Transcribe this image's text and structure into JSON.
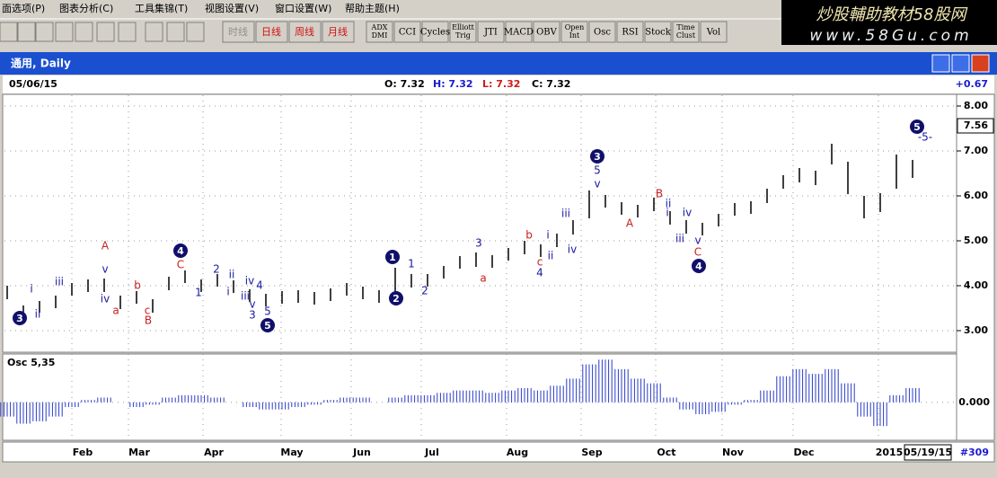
{
  "menu": [
    "面选项(P)",
    "图表分析(C)",
    "工具集锦(T)",
    "视图设置(V)",
    "窗口设置(W)",
    "帮助主题(H)"
  ],
  "banner": {
    "title": "炒股輔助教材58股网",
    "url": "www.58Gu.com"
  },
  "toolbar": {
    "period_buttons": [
      "时线",
      "日线",
      "周线",
      "月线"
    ],
    "indicator_buttons": [
      [
        "ADX",
        "DMI"
      ],
      [
        "CCI"
      ],
      [
        "Cycles"
      ],
      [
        "Elliott",
        "Trig"
      ],
      [
        "JTI"
      ],
      [
        "MACD"
      ],
      [
        "OBV"
      ],
      [
        "Open",
        "Int"
      ],
      [
        "Osc"
      ],
      [
        "RSI"
      ],
      [
        "Stock"
      ],
      [
        "Time",
        "Clust"
      ],
      [
        "Vol"
      ]
    ]
  },
  "window": {
    "title": "通用, Daily"
  },
  "info": {
    "date": "05/06/15",
    "open": "O: 7.32",
    "high": "H: 7.32",
    "low": "L: 7.32",
    "close": "C: 7.32",
    "change": "+0.67"
  },
  "chart_data": [
    {
      "type": "ohlc",
      "color": "#000000",
      "high": [
        4.0,
        3.56,
        3.66,
        3.78,
        4.06,
        4.14,
        4.16,
        3.78,
        3.88,
        3.7,
        4.2,
        4.34,
        4.14,
        4.26,
        4.12,
        3.92,
        3.82,
        3.88,
        3.9,
        3.86,
        3.94,
        4.06,
        3.98,
        3.9,
        4.4,
        4.26,
        4.26,
        4.44,
        4.66,
        4.74,
        4.68,
        4.84,
        5.0,
        4.92,
        5.16,
        5.46,
        6.12,
        6.02,
        5.86,
        5.8,
        5.96,
        5.66,
        5.46,
        5.4,
        5.6,
        5.84,
        5.88,
        6.16,
        6.46,
        6.62,
        6.56,
        7.16,
        6.76,
        6.0,
        6.06,
        6.92,
        6.8
      ],
      "low": [
        3.7,
        3.26,
        3.4,
        3.5,
        3.78,
        3.86,
        3.86,
        3.48,
        3.6,
        3.4,
        3.9,
        4.06,
        3.86,
        3.98,
        3.84,
        3.64,
        3.54,
        3.6,
        3.62,
        3.58,
        3.66,
        3.78,
        3.7,
        3.62,
        3.86,
        3.96,
        3.98,
        4.16,
        4.38,
        4.42,
        4.4,
        4.56,
        4.7,
        4.64,
        4.86,
        5.14,
        5.5,
        5.74,
        5.58,
        5.52,
        5.66,
        5.36,
        5.16,
        5.12,
        5.32,
        5.56,
        5.6,
        5.84,
        6.16,
        6.3,
        6.24,
        6.7,
        6.04,
        5.5,
        5.64,
        6.16,
        6.4
      ],
      "ylim": [
        2.52,
        8.26
      ],
      "yticks": [
        {
          "value": 3,
          "label": "3.00"
        },
        {
          "value": 4,
          "label": "4.00"
        },
        {
          "value": 5,
          "label": "5.00"
        },
        {
          "value": 6,
          "label": "6.00"
        },
        {
          "value": 7,
          "label": "7.00"
        },
        {
          "value": 8,
          "label": "8.00"
        }
      ],
      "last_price": 7.56,
      "annotations": [
        {
          "text": "3",
          "style": "circle"
        },
        {
          "text": "ii",
          "style": "blue"
        },
        {
          "text": "i",
          "style": "blue"
        },
        {
          "text": "iii",
          "style": "blue"
        },
        {
          "text": "A",
          "style": "red"
        },
        {
          "text": "v",
          "style": "blue"
        },
        {
          "text": "iv",
          "style": "blue"
        },
        {
          "text": "a",
          "style": "red"
        },
        {
          "text": "b",
          "style": "red"
        },
        {
          "text": "c",
          "style": "red"
        },
        {
          "text": "B",
          "style": "red"
        },
        {
          "text": "4",
          "style": "circle"
        },
        {
          "text": "C",
          "style": "red"
        },
        {
          "text": "2",
          "style": "blue"
        },
        {
          "text": "ii",
          "style": "blue"
        },
        {
          "text": "i",
          "style": "blue"
        },
        {
          "text": "1",
          "style": "blue"
        },
        {
          "text": "iv",
          "style": "blue"
        },
        {
          "text": "4",
          "style": "blue"
        },
        {
          "text": "iii",
          "style": "blue"
        },
        {
          "text": "v",
          "style": "blue"
        },
        {
          "text": "3",
          "style": "blue"
        },
        {
          "text": "5",
          "style": "blue"
        },
        {
          "text": "5",
          "style": "circle"
        },
        {
          "text": "1",
          "style": "circle"
        },
        {
          "text": "1",
          "style": "blue"
        },
        {
          "text": "2",
          "style": "circle"
        },
        {
          "text": "2",
          "style": "blue"
        },
        {
          "text": "3",
          "style": "blue"
        },
        {
          "text": "a",
          "style": "red"
        },
        {
          "text": "b",
          "style": "red"
        },
        {
          "text": "c",
          "style": "red"
        },
        {
          "text": "4",
          "style": "blue"
        },
        {
          "text": "i",
          "style": "blue"
        },
        {
          "text": "ii",
          "style": "blue"
        },
        {
          "text": "iii",
          "style": "blue"
        },
        {
          "text": "iv",
          "style": "blue"
        },
        {
          "text": "3",
          "style": "circle"
        },
        {
          "text": "5",
          "style": "blue"
        },
        {
          "text": "v",
          "style": "blue"
        },
        {
          "text": "A",
          "style": "red"
        },
        {
          "text": "B",
          "style": "red"
        },
        {
          "text": "ii",
          "style": "blue"
        },
        {
          "text": "i",
          "style": "blue"
        },
        {
          "text": "iv",
          "style": "blue"
        },
        {
          "text": "iii",
          "style": "blue"
        },
        {
          "text": "v",
          "style": "blue"
        },
        {
          "text": "C",
          "style": "red"
        },
        {
          "text": "4",
          "style": "circle"
        },
        {
          "text": "5",
          "style": "circle"
        },
        {
          "text": "-5-",
          "style": "blue"
        }
      ]
    },
    {
      "type": "histogram",
      "title": "Osc 5,35",
      "color": "#2a3cc8",
      "values": [
        -0.06,
        -0.09,
        -0.08,
        -0.06,
        -0.02,
        0.01,
        0.02,
        0.0,
        -0.02,
        -0.01,
        0.02,
        0.03,
        0.03,
        0.02,
        0.0,
        -0.02,
        -0.03,
        -0.03,
        -0.02,
        -0.01,
        0.01,
        0.02,
        0.02,
        0.0,
        0.02,
        0.03,
        0.03,
        0.04,
        0.05,
        0.05,
        0.04,
        0.05,
        0.06,
        0.05,
        0.07,
        0.1,
        0.16,
        0.18,
        0.14,
        0.1,
        0.08,
        0.02,
        -0.03,
        -0.05,
        -0.04,
        -0.01,
        0.01,
        0.05,
        0.11,
        0.14,
        0.12,
        0.14,
        0.08,
        -0.06,
        -0.1,
        0.03,
        0.06
      ],
      "ylim": [
        -0.16,
        0.2
      ],
      "yticks": [
        {
          "value": 0,
          "label": "0.000"
        }
      ]
    }
  ],
  "x_axis": {
    "months": [
      "Feb",
      "Mar",
      "Apr",
      "May",
      "Jun",
      "Jul",
      "Aug",
      "Sep",
      "Oct",
      "Nov",
      "Dec",
      "2015"
    ],
    "cursor_date": "05/19/15",
    "bar_number": "#309"
  }
}
